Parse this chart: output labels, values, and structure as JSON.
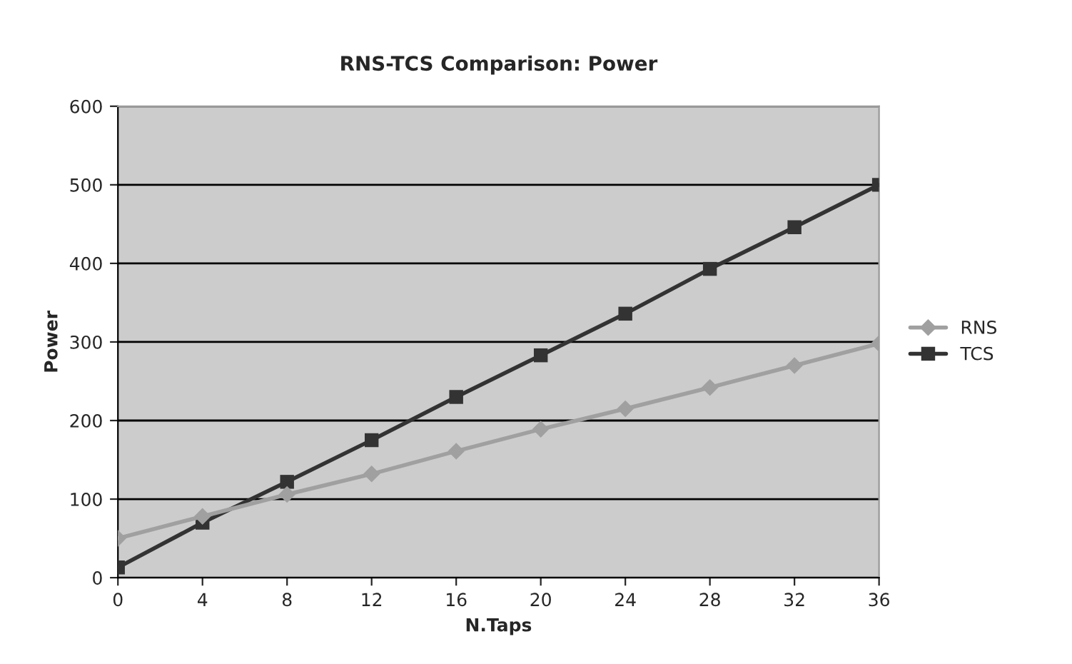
{
  "chart_data": {
    "type": "line",
    "title": "RNS-TCS Comparison: Power",
    "xlabel": "N.Taps",
    "ylabel": "Power",
    "x": [
      0,
      4,
      8,
      12,
      16,
      20,
      24,
      28,
      32,
      36
    ],
    "series": [
      {
        "name": "RNS",
        "color": "#a0a0a0",
        "marker": "diamond",
        "values": [
          50,
          78,
          106,
          132,
          161,
          189,
          215,
          242,
          270,
          298
        ]
      },
      {
        "name": "TCS",
        "color": "#333333",
        "marker": "square",
        "values": [
          13,
          70,
          122,
          175,
          230,
          283,
          336,
          393,
          446,
          500
        ]
      }
    ],
    "xlim": [
      0,
      36
    ],
    "xticks": [
      0,
      4,
      8,
      12,
      16,
      20,
      24,
      28,
      32,
      36
    ],
    "ylim": [
      0,
      600
    ],
    "yticks": [
      0,
      100,
      200,
      300,
      400,
      500,
      600
    ],
    "grid": "y",
    "legend": "right"
  }
}
